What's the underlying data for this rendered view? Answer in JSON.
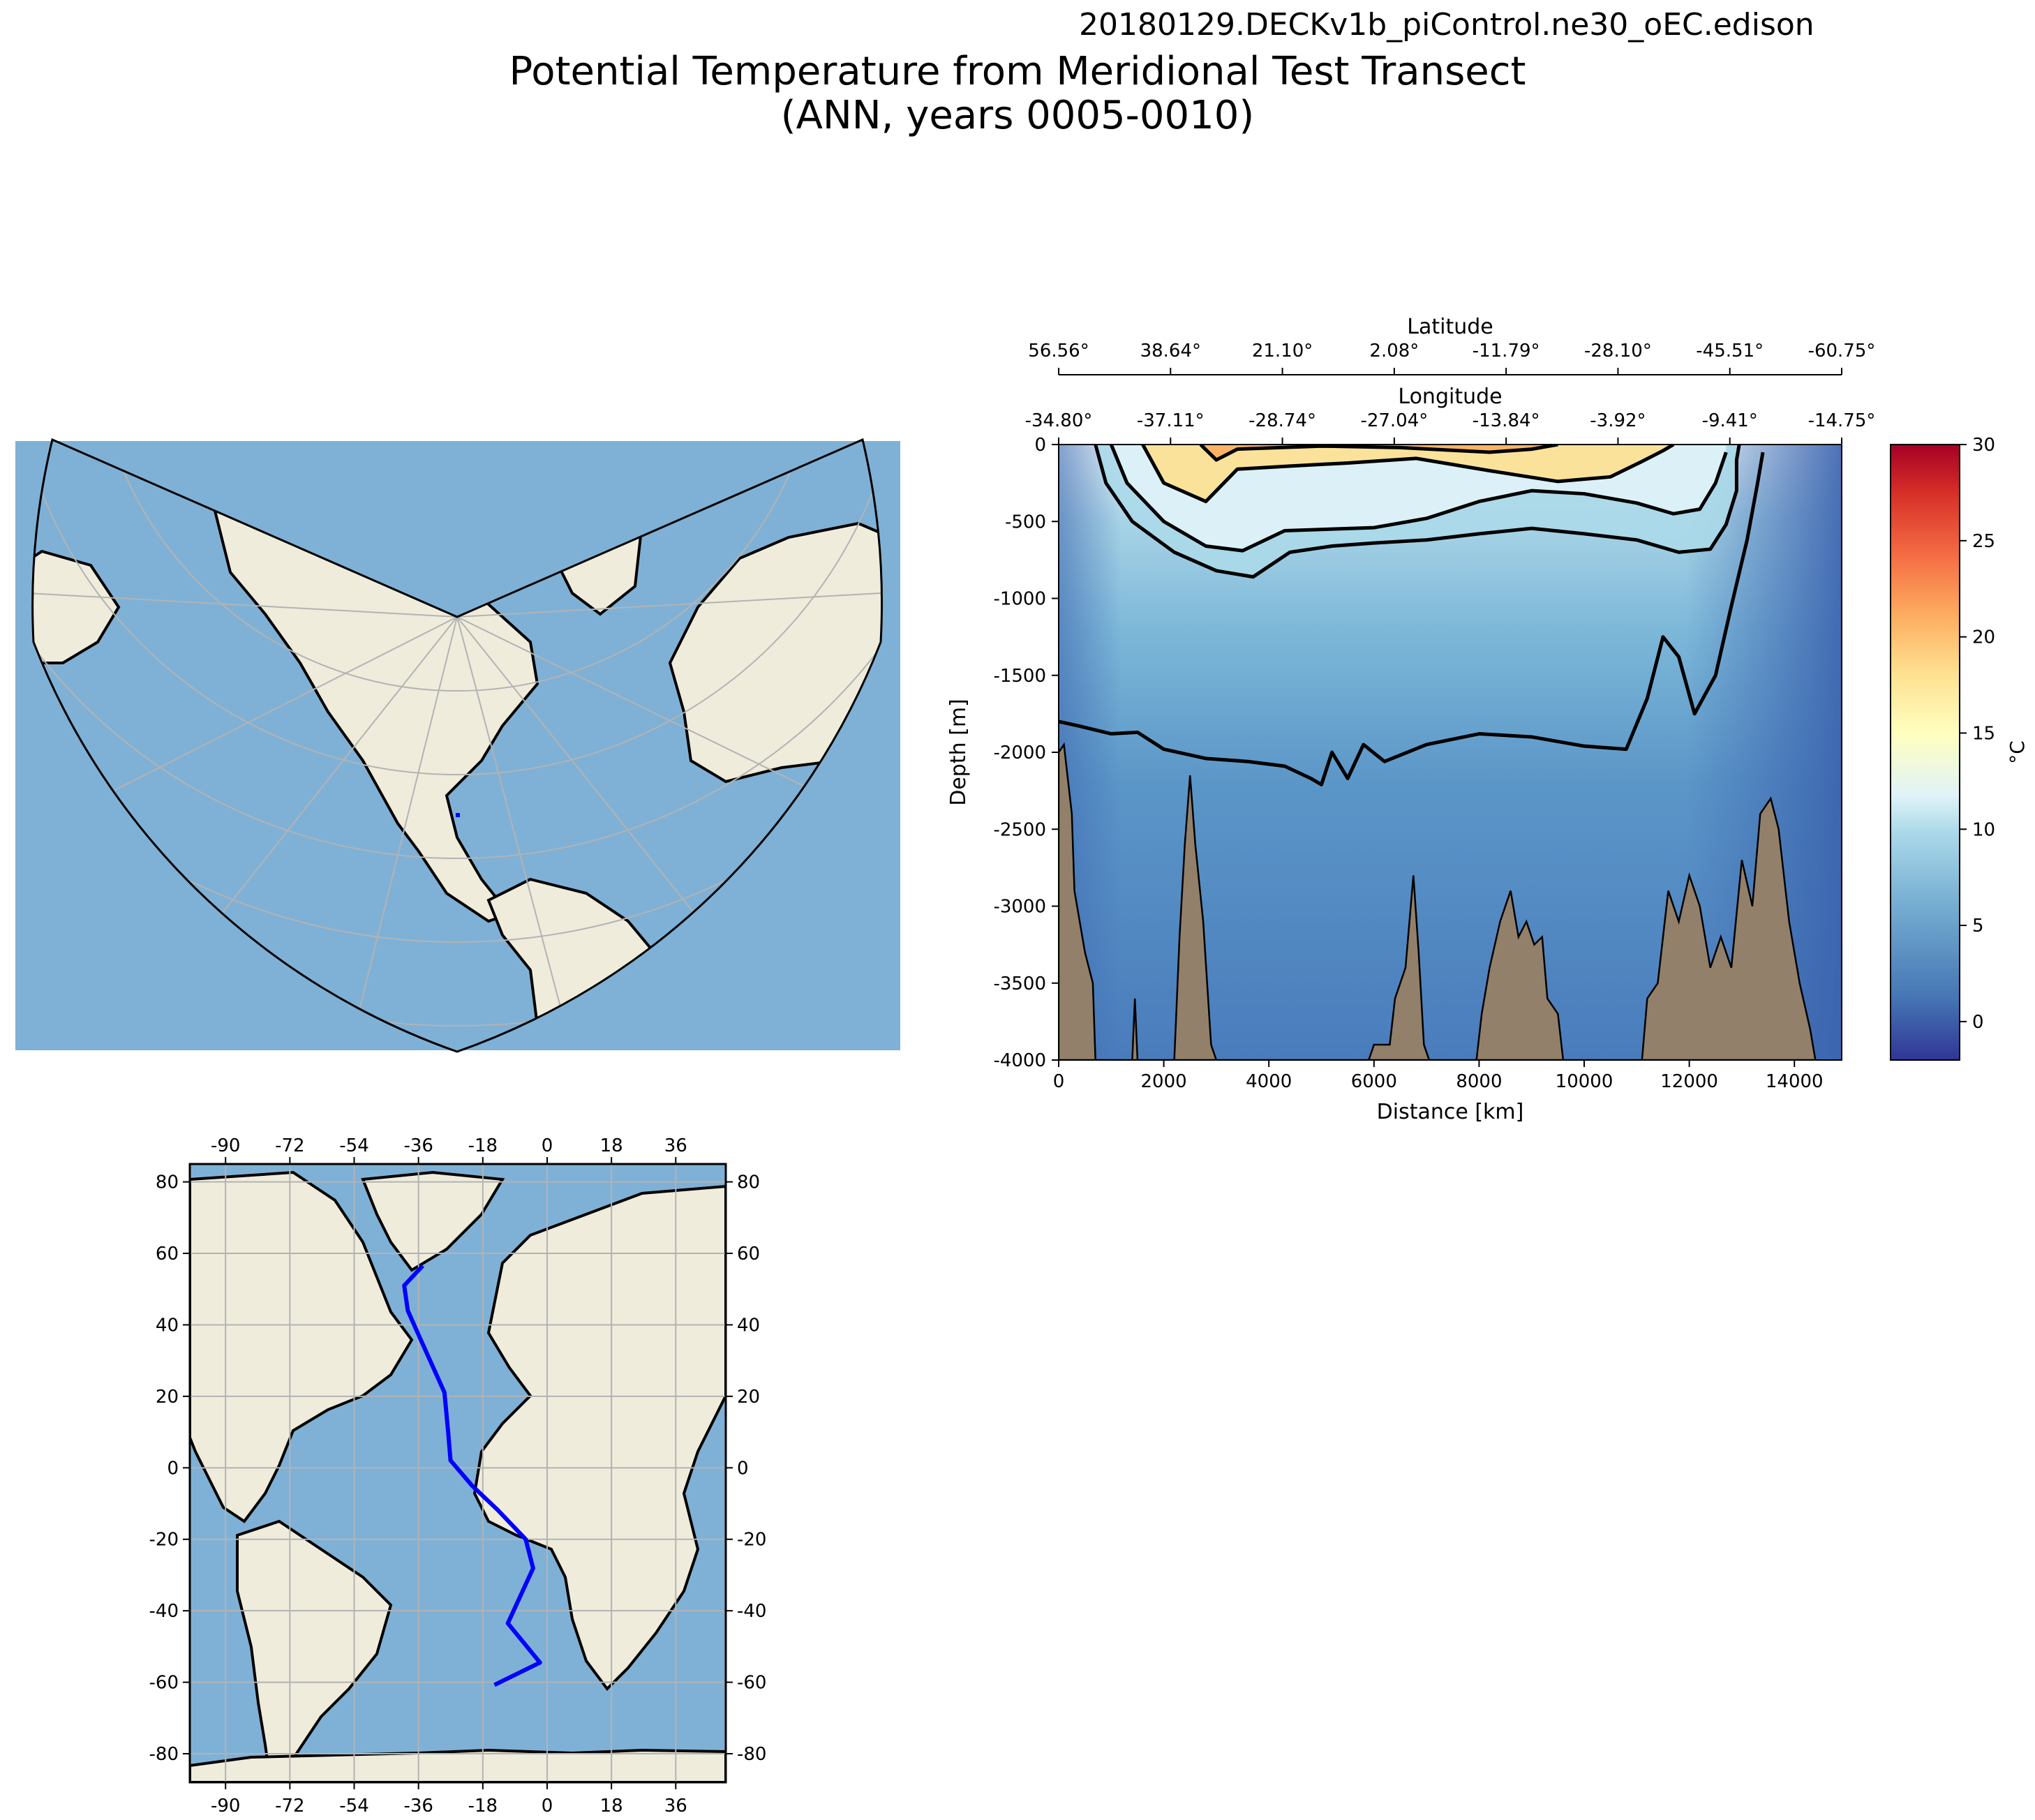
{
  "figure": {
    "run_id": "20180129.DECKv1b_piControl.ne30_oEC.edison",
    "title_line1": "Potential Temperature from Meridional Test Transect",
    "title_line2": "(ANN, years 0005-0010)"
  },
  "colors": {
    "ocean": "#7fb1d6",
    "land": "#efecdc",
    "grid": "#b3b3b3",
    "transect": "#0000ff",
    "bathymetry": "#92806a",
    "contour": "#000000"
  },
  "chart_data": [
    {
      "type": "map",
      "name": "overview-map",
      "projection": "conic",
      "land_labels": [],
      "transect_marker": "small blue dot over North America"
    },
    {
      "type": "heatmap",
      "name": "temperature-transect",
      "xlabel": "Distance [km]",
      "ylabel": "Depth [m]",
      "xlim": [
        0,
        14900
      ],
      "ylim": [
        -4000,
        0
      ],
      "x_ticks": [
        0,
        2000,
        4000,
        6000,
        8000,
        10000,
        12000,
        14000
      ],
      "y_ticks": [
        0,
        -500,
        -1000,
        -1500,
        -2000,
        -2500,
        -3000,
        -3500,
        -4000
      ],
      "top_axis_lat_label": "Latitude",
      "lat_tick_labels": [
        "56.56°",
        "38.64°",
        "21.10°",
        "2.08°",
        "-11.79°",
        "-28.10°",
        "-45.51°",
        "-60.75°"
      ],
      "top_axis_lon_label": "Longitude",
      "lon_tick_labels": [
        "-34.80°",
        "-37.11°",
        "-28.74°",
        "-27.04°",
        "-13.84°",
        "-3.92°",
        "-9.41°",
        "-14.75°"
      ],
      "colorbar": {
        "label": "°C",
        "min": -2,
        "max": 30,
        "ticks": [
          0,
          5,
          10,
          15,
          20,
          25,
          30
        ]
      },
      "contour_levels_degC": [
        4,
        8,
        12,
        16,
        20
      ],
      "isolines": [
        {
          "level": 4,
          "points": [
            [
              0,
              -1800
            ],
            [
              400,
              -1830
            ],
            [
              1000,
              -1880
            ],
            [
              1500,
              -1870
            ],
            [
              2000,
              -1980
            ],
            [
              2800,
              -2040
            ],
            [
              3600,
              -2060
            ],
            [
              4300,
              -2090
            ],
            [
              4800,
              -2170
            ],
            [
              5000,
              -2210
            ],
            [
              5200,
              -2000
            ],
            [
              5500,
              -2170
            ],
            [
              5800,
              -1950
            ],
            [
              6200,
              -2060
            ],
            [
              7000,
              -1950
            ],
            [
              8000,
              -1880
            ],
            [
              9000,
              -1900
            ],
            [
              10000,
              -1960
            ],
            [
              10800,
              -1980
            ],
            [
              11200,
              -1650
            ],
            [
              11500,
              -1250
            ],
            [
              11800,
              -1380
            ],
            [
              12100,
              -1750
            ],
            [
              12500,
              -1500
            ],
            [
              12800,
              -1050
            ],
            [
              13100,
              -620
            ],
            [
              13300,
              -250
            ],
            [
              13400,
              -50
            ]
          ]
        },
        {
          "level": 8,
          "points": [
            [
              700,
              0
            ],
            [
              900,
              -250
            ],
            [
              1400,
              -500
            ],
            [
              2200,
              -700
            ],
            [
              3000,
              -820
            ],
            [
              3700,
              -860
            ],
            [
              4400,
              -700
            ],
            [
              5200,
              -660
            ],
            [
              6000,
              -640
            ],
            [
              7000,
              -620
            ],
            [
              8000,
              -580
            ],
            [
              9000,
              -545
            ],
            [
              10000,
              -580
            ],
            [
              11000,
              -620
            ],
            [
              11800,
              -700
            ],
            [
              12400,
              -680
            ],
            [
              12700,
              -520
            ],
            [
              12900,
              -300
            ],
            [
              12900,
              -100
            ],
            [
              12950,
              0
            ]
          ]
        },
        {
          "level": 12,
          "points": [
            [
              1000,
              0
            ],
            [
              1300,
              -250
            ],
            [
              2000,
              -500
            ],
            [
              2800,
              -660
            ],
            [
              3500,
              -690
            ],
            [
              4300,
              -560
            ],
            [
              6000,
              -540
            ],
            [
              7000,
              -480
            ],
            [
              8000,
              -370
            ],
            [
              9000,
              -300
            ],
            [
              10000,
              -320
            ],
            [
              11000,
              -380
            ],
            [
              11700,
              -450
            ],
            [
              12200,
              -420
            ],
            [
              12500,
              -250
            ],
            [
              12700,
              -50
            ]
          ]
        },
        {
          "level": 16,
          "points": [
            [
              1600,
              0
            ],
            [
              2000,
              -250
            ],
            [
              2800,
              -370
            ],
            [
              3400,
              -160
            ],
            [
              4400,
              -140
            ],
            [
              5500,
              -120
            ],
            [
              6800,
              -90
            ],
            [
              8200,
              -170
            ],
            [
              9500,
              -240
            ],
            [
              10500,
              -210
            ],
            [
              11100,
              -110
            ],
            [
              11500,
              -40
            ],
            [
              11700,
              0
            ]
          ]
        },
        {
          "level": 20,
          "points": [
            [
              2700,
              0
            ],
            [
              3000,
              -100
            ],
            [
              3400,
              -30
            ],
            [
              5000,
              -10
            ],
            [
              6500,
              -20
            ],
            [
              8200,
              -50
            ],
            [
              9000,
              -30
            ],
            [
              9500,
              0
            ]
          ]
        }
      ],
      "bathymetry": [
        [
          0,
          -4000
        ],
        [
          0,
          -2000
        ],
        [
          100,
          -1950
        ],
        [
          250,
          -2400
        ],
        [
          300,
          -2900
        ],
        [
          500,
          -3300
        ],
        [
          650,
          -3500
        ],
        [
          700,
          -4000
        ],
        [
          1400,
          -4000
        ],
        [
          1450,
          -3600
        ],
        [
          1500,
          -4000
        ],
        [
          2200,
          -4000
        ],
        [
          2300,
          -3200
        ],
        [
          2400,
          -2600
        ],
        [
          2500,
          -2150
        ],
        [
          2600,
          -2600
        ],
        [
          2750,
          -3100
        ],
        [
          2900,
          -3900
        ],
        [
          3000,
          -4000
        ],
        [
          5900,
          -4000
        ],
        [
          6000,
          -3900
        ],
        [
          6300,
          -3900
        ],
        [
          6400,
          -3600
        ],
        [
          6600,
          -3400
        ],
        [
          6750,
          -2800
        ],
        [
          6850,
          -3300
        ],
        [
          6950,
          -3900
        ],
        [
          7050,
          -4000
        ],
        [
          7950,
          -4000
        ],
        [
          8050,
          -3700
        ],
        [
          8200,
          -3400
        ],
        [
          8400,
          -3100
        ],
        [
          8600,
          -2900
        ],
        [
          8750,
          -3200
        ],
        [
          8900,
          -3100
        ],
        [
          9050,
          -3250
        ],
        [
          9200,
          -3200
        ],
        [
          9300,
          -3600
        ],
        [
          9500,
          -3700
        ],
        [
          9600,
          -4000
        ],
        [
          11100,
          -4000
        ],
        [
          11200,
          -3600
        ],
        [
          11400,
          -3500
        ],
        [
          11600,
          -2900
        ],
        [
          11800,
          -3100
        ],
        [
          12000,
          -2800
        ],
        [
          12200,
          -3000
        ],
        [
          12400,
          -3400
        ],
        [
          12600,
          -3200
        ],
        [
          12800,
          -3400
        ],
        [
          13000,
          -2700
        ],
        [
          13200,
          -3000
        ],
        [
          13350,
          -2400
        ],
        [
          13550,
          -2300
        ],
        [
          13700,
          -2500
        ],
        [
          13900,
          -3100
        ],
        [
          14100,
          -3500
        ],
        [
          14300,
          -3800
        ],
        [
          14400,
          -4000
        ]
      ]
    },
    {
      "type": "map",
      "name": "transect-map",
      "projection": "plate-carree",
      "xlim": [
        -100,
        50
      ],
      "ylim": [
        -88,
        85
      ],
      "x_ticks": [
        -90,
        -72,
        -54,
        -36,
        -18,
        0,
        18,
        36
      ],
      "y_ticks": [
        80,
        60,
        40,
        20,
        0,
        -20,
        -40,
        -60,
        -80
      ],
      "transect_lonlat": [
        [
          -34.8,
          56.56
        ],
        [
          -40,
          51
        ],
        [
          -39,
          44
        ],
        [
          -35,
          35
        ],
        [
          -28.74,
          21.1
        ],
        [
          -27.7,
          10
        ],
        [
          -27.04,
          2.08
        ],
        [
          -21,
          -5
        ],
        [
          -13.84,
          -11.79
        ],
        [
          -6,
          -20
        ],
        [
          -3.92,
          -28.1
        ],
        [
          -11,
          -43.5
        ],
        [
          -2,
          -54.5
        ],
        [
          -14.75,
          -60.75
        ]
      ]
    }
  ]
}
